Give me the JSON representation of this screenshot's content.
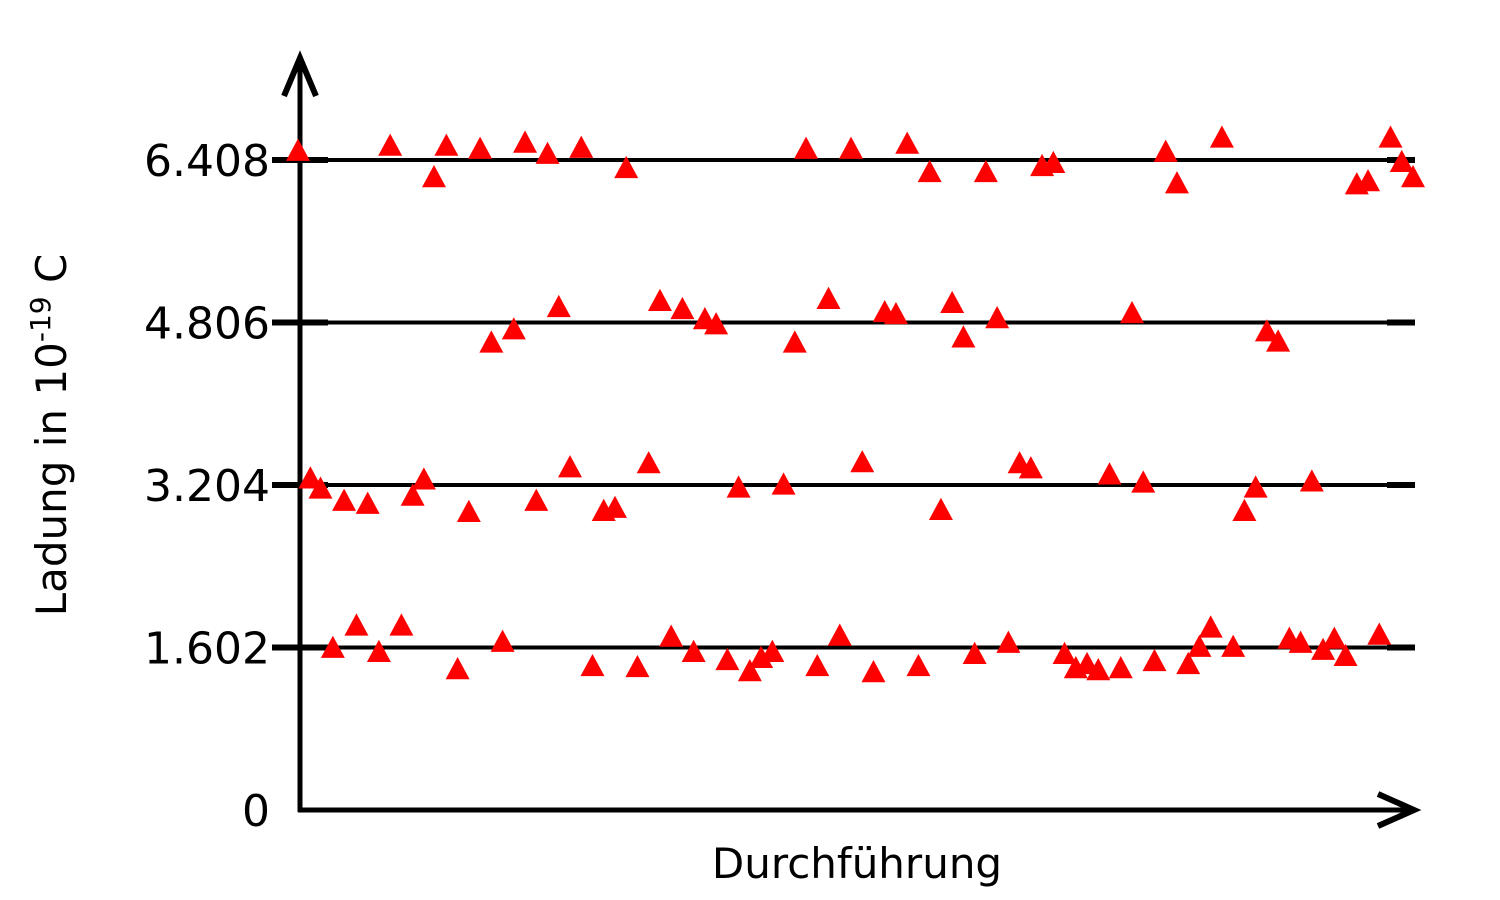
{
  "chart_data": {
    "type": "scatter",
    "xlabel": "Durchführung",
    "ylabel_prefix": "Ladung in 10",
    "ylabel_exponent": "-19",
    "ylabel_suffix": " C",
    "ylim": [
      0,
      6.408
    ],
    "yticks": [
      {
        "value": 0,
        "label": "0"
      },
      {
        "value": 1.602,
        "label": "1.602"
      },
      {
        "value": 3.204,
        "label": "3.204"
      },
      {
        "value": 4.806,
        "label": "4.806"
      },
      {
        "value": 6.408,
        "label": "6.408"
      }
    ],
    "reference_lines": [
      1.602,
      3.204,
      4.806,
      6.408
    ],
    "grid": false,
    "marker": "triangle",
    "marker_color": "#ff0000",
    "series": [
      {
        "points": [
          {
            "x": 0.0,
            "y": 6.5
          },
          {
            "x": 1.1,
            "y": 3.27
          },
          {
            "x": 2.0,
            "y": 3.17
          },
          {
            "x": 3.1,
            "y": 1.6
          },
          {
            "x": 4.1,
            "y": 3.05
          },
          {
            "x": 5.2,
            "y": 1.82
          },
          {
            "x": 6.2,
            "y": 3.02
          },
          {
            "x": 7.2,
            "y": 1.56
          },
          {
            "x": 8.2,
            "y": 6.55
          },
          {
            "x": 9.2,
            "y": 1.82
          },
          {
            "x": 10.2,
            "y": 3.1
          },
          {
            "x": 11.2,
            "y": 3.26
          },
          {
            "x": 12.1,
            "y": 6.24
          },
          {
            "x": 13.2,
            "y": 6.55
          },
          {
            "x": 14.2,
            "y": 1.39
          },
          {
            "x": 15.2,
            "y": 2.94
          },
          {
            "x": 16.2,
            "y": 6.52
          },
          {
            "x": 17.2,
            "y": 4.61
          },
          {
            "x": 18.2,
            "y": 1.66
          },
          {
            "x": 19.2,
            "y": 4.74
          },
          {
            "x": 20.2,
            "y": 6.58
          },
          {
            "x": 21.2,
            "y": 3.05
          },
          {
            "x": 22.2,
            "y": 6.47
          },
          {
            "x": 23.2,
            "y": 4.96
          },
          {
            "x": 24.2,
            "y": 3.38
          },
          {
            "x": 25.2,
            "y": 6.53
          },
          {
            "x": 26.2,
            "y": 1.42
          },
          {
            "x": 27.2,
            "y": 2.95
          },
          {
            "x": 28.2,
            "y": 2.98
          },
          {
            "x": 29.2,
            "y": 6.33
          },
          {
            "x": 30.2,
            "y": 1.41
          },
          {
            "x": 31.2,
            "y": 3.42
          },
          {
            "x": 32.2,
            "y": 5.02
          },
          {
            "x": 33.2,
            "y": 1.71
          },
          {
            "x": 34.2,
            "y": 4.94
          },
          {
            "x": 35.2,
            "y": 1.56
          },
          {
            "x": 36.2,
            "y": 4.84
          },
          {
            "x": 37.2,
            "y": 4.79
          },
          {
            "x": 38.2,
            "y": 1.48
          },
          {
            "x": 39.2,
            "y": 3.18
          },
          {
            "x": 40.2,
            "y": 1.37
          },
          {
            "x": 41.2,
            "y": 1.5
          },
          {
            "x": 42.2,
            "y": 1.56
          },
          {
            "x": 43.2,
            "y": 3.21
          },
          {
            "x": 44.2,
            "y": 4.61
          },
          {
            "x": 45.2,
            "y": 6.52
          },
          {
            "x": 46.2,
            "y": 1.42
          },
          {
            "x": 47.2,
            "y": 5.04
          },
          {
            "x": 48.2,
            "y": 1.72
          },
          {
            "x": 49.2,
            "y": 6.52
          },
          {
            "x": 50.2,
            "y": 3.43
          },
          {
            "x": 51.2,
            "y": 1.36
          },
          {
            "x": 52.2,
            "y": 4.91
          },
          {
            "x": 53.2,
            "y": 4.89
          },
          {
            "x": 54.2,
            "y": 6.57
          },
          {
            "x": 55.2,
            "y": 1.42
          },
          {
            "x": 56.2,
            "y": 6.29
          },
          {
            "x": 57.2,
            "y": 2.96
          },
          {
            "x": 58.2,
            "y": 5.0
          },
          {
            "x": 59.2,
            "y": 4.66
          },
          {
            "x": 60.2,
            "y": 1.54
          },
          {
            "x": 61.2,
            "y": 6.29
          },
          {
            "x": 62.2,
            "y": 4.85
          },
          {
            "x": 63.2,
            "y": 1.65
          },
          {
            "x": 64.2,
            "y": 3.42
          },
          {
            "x": 65.2,
            "y": 3.37
          },
          {
            "x": 66.2,
            "y": 6.35
          },
          {
            "x": 67.2,
            "y": 6.38
          },
          {
            "x": 68.2,
            "y": 1.54
          },
          {
            "x": 69.2,
            "y": 1.4
          },
          {
            "x": 70.2,
            "y": 1.44
          },
          {
            "x": 71.2,
            "y": 1.38
          },
          {
            "x": 72.2,
            "y": 3.31
          },
          {
            "x": 73.2,
            "y": 1.4
          },
          {
            "x": 74.2,
            "y": 4.9
          },
          {
            "x": 75.2,
            "y": 3.23
          },
          {
            "x": 76.2,
            "y": 1.47
          },
          {
            "x": 77.2,
            "y": 6.49
          },
          {
            "x": 78.2,
            "y": 6.18
          },
          {
            "x": 79.2,
            "y": 1.44
          },
          {
            "x": 80.2,
            "y": 1.61
          },
          {
            "x": 81.2,
            "y": 1.8
          },
          {
            "x": 82.2,
            "y": 6.63
          },
          {
            "x": 83.2,
            "y": 1.61
          },
          {
            "x": 84.2,
            "y": 2.95
          },
          {
            "x": 85.2,
            "y": 3.18
          },
          {
            "x": 86.2,
            "y": 4.72
          },
          {
            "x": 87.2,
            "y": 4.62
          },
          {
            "x": 88.2,
            "y": 1.69
          },
          {
            "x": 89.2,
            "y": 1.65
          },
          {
            "x": 90.2,
            "y": 3.24
          },
          {
            "x": 91.2,
            "y": 1.58
          },
          {
            "x": 92.2,
            "y": 1.69
          },
          {
            "x": 93.2,
            "y": 1.52
          },
          {
            "x": 94.2,
            "y": 6.17
          },
          {
            "x": 95.2,
            "y": 6.2
          },
          {
            "x": 96.2,
            "y": 1.73
          },
          {
            "x": 97.2,
            "y": 6.63
          },
          {
            "x": 98.2,
            "y": 6.39
          },
          {
            "x": 99.2,
            "y": 6.24
          }
        ]
      }
    ]
  }
}
